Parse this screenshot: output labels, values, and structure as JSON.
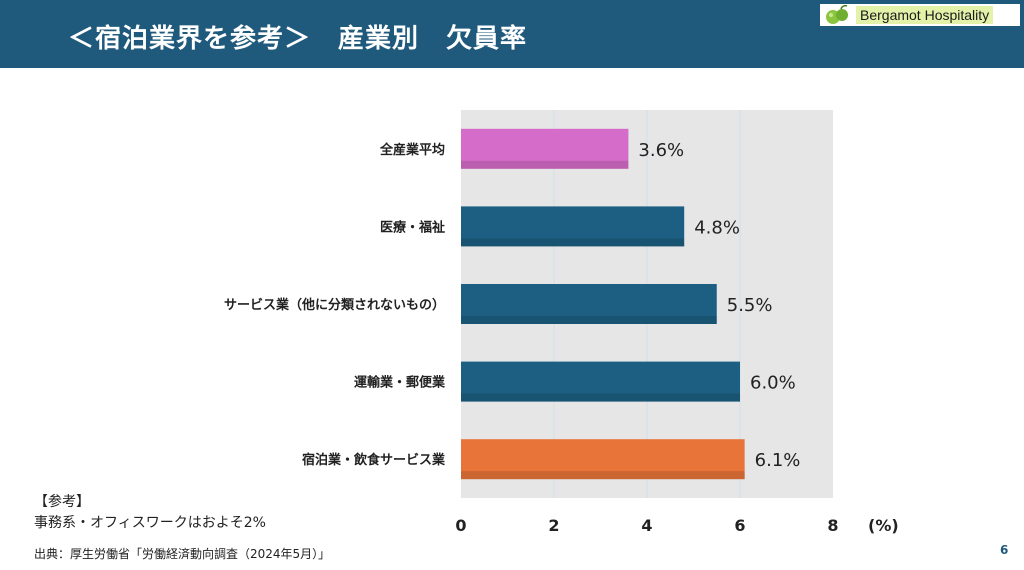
{
  "header": {
    "title": "＜宿泊業界を参考＞　産業別　欠員率"
  },
  "brand": {
    "name": "Bergamot Hospitality"
  },
  "chart_data": {
    "type": "bar",
    "orientation": "horizontal",
    "categories": [
      "全産業平均",
      "医療・福祉",
      "サービス業（他に分類されないもの）",
      "運輸業・郵便業",
      "宿泊業・飲食サービス業"
    ],
    "values": [
      3.6,
      4.8,
      5.5,
      6.0,
      6.1
    ],
    "value_labels": [
      "3.6%",
      "4.8%",
      "5.5%",
      "6.0%",
      "6.1%"
    ],
    "bar_colors": [
      "#d66cc9",
      "#1d5f82",
      "#1d5f82",
      "#1d5f82",
      "#e8743a"
    ],
    "xticks": [
      "0",
      "2",
      "4",
      "6",
      "8"
    ],
    "xlim": [
      0,
      8
    ],
    "xunit": "(%)",
    "grid": true
  },
  "note": {
    "heading": "【参考】",
    "text": "事務系・オフィスワークはおよそ2%"
  },
  "source": "出典：厚生労働省「労働経済動向調査（2024年5月）」",
  "page_number": "6"
}
